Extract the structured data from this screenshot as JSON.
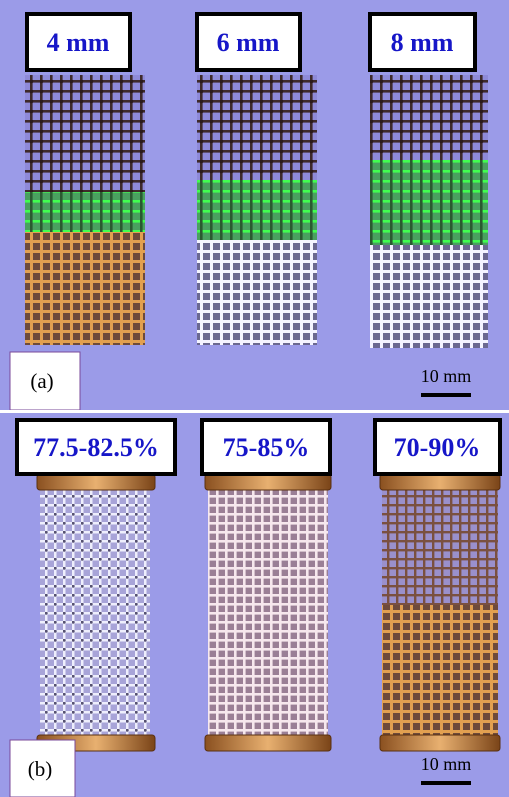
{
  "panels": [
    {
      "label": "(a)",
      "scale": "10 mm",
      "samples": [
        "4 mm",
        "6 mm",
        "8 mm"
      ]
    },
    {
      "label": "(b)",
      "scale": "10 mm",
      "samples": [
        "77.5-82.5%",
        "75-85%",
        "70-90%"
      ]
    }
  ]
}
